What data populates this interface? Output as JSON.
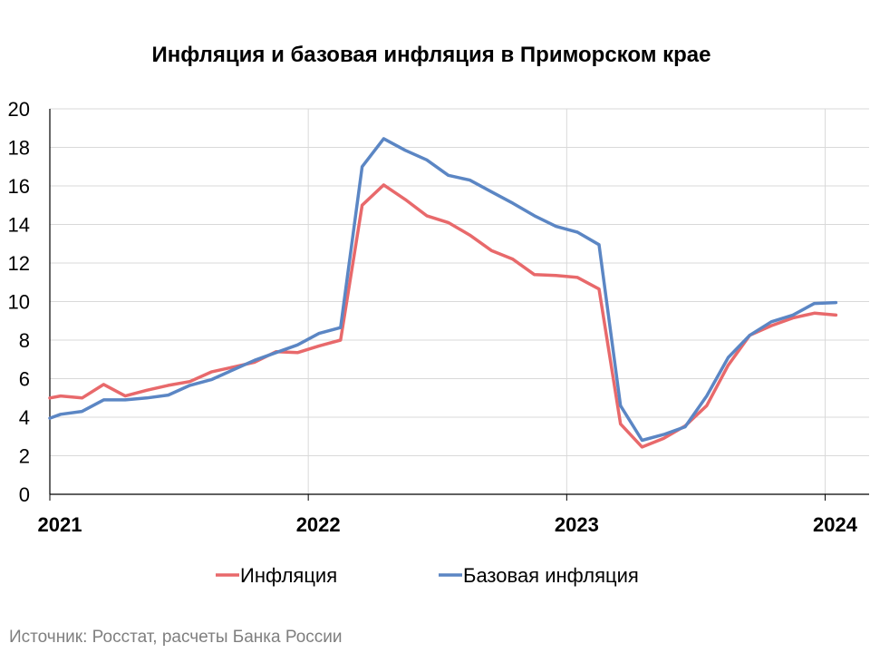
{
  "chart_data": {
    "type": "line",
    "title": "Инфляция и базовая инфляция в Приморском крае",
    "ylim": [
      0,
      20
    ],
    "yticks": [
      "0",
      "2",
      "4",
      "6",
      "8",
      "10",
      "12",
      "14",
      "16",
      "18",
      "20"
    ],
    "xlim": [
      2021,
      2024.17
    ],
    "xticks": [
      {
        "value": 2021,
        "label": "2021"
      },
      {
        "value": 2022,
        "label": "2022"
      },
      {
        "value": 2023,
        "label": "2023"
      },
      {
        "value": 2024,
        "label": "2024"
      }
    ],
    "grid": true,
    "legend_position": "bottom",
    "series": [
      {
        "name": "Инфляция",
        "color": "#e8696b",
        "x": [
          2021.0,
          2021.0417,
          2021.125,
          2021.2083,
          2021.2917,
          2021.375,
          2021.4583,
          2021.5417,
          2021.625,
          2021.7083,
          2021.7917,
          2021.875,
          2021.9583,
          2022.0417,
          2022.125,
          2022.2083,
          2022.2917,
          2022.375,
          2022.4583,
          2022.5417,
          2022.625,
          2022.7083,
          2022.7917,
          2022.875,
          2022.9583,
          2023.0417,
          2023.125,
          2023.2083,
          2023.2917,
          2023.375,
          2023.4583,
          2023.5417,
          2023.625,
          2023.7083,
          2023.7917,
          2023.875,
          2023.9583,
          2024.0417
        ],
        "values": [
          5.0,
          5.1,
          5.0,
          5.7,
          5.1,
          5.4,
          5.65,
          5.85,
          6.35,
          6.6,
          6.85,
          7.4,
          7.35,
          7.7,
          8.0,
          15.0,
          16.05,
          15.3,
          14.45,
          14.1,
          13.45,
          12.65,
          12.2,
          11.4,
          11.35,
          11.25,
          10.65,
          3.65,
          2.45,
          2.9,
          3.55,
          4.6,
          6.7,
          8.25,
          8.75,
          9.15,
          9.4,
          9.3
        ]
      },
      {
        "name": "Базовая инфляция",
        "color": "#5b86c4",
        "x": [
          2021.0,
          2021.0417,
          2021.125,
          2021.2083,
          2021.2917,
          2021.375,
          2021.4583,
          2021.5417,
          2021.625,
          2021.7083,
          2021.7917,
          2021.875,
          2021.9583,
          2022.0417,
          2022.125,
          2022.2083,
          2022.2917,
          2022.375,
          2022.4583,
          2022.5417,
          2022.625,
          2022.7083,
          2022.7917,
          2022.875,
          2022.9583,
          2023.0417,
          2023.125,
          2023.2083,
          2023.2917,
          2023.375,
          2023.4583,
          2023.5417,
          2023.625,
          2023.7083,
          2023.7917,
          2023.875,
          2023.9583,
          2024.0417
        ],
        "values": [
          3.95,
          4.15,
          4.3,
          4.9,
          4.9,
          5.0,
          5.15,
          5.65,
          5.95,
          6.45,
          6.95,
          7.35,
          7.75,
          8.35,
          8.65,
          17.0,
          18.45,
          17.85,
          17.35,
          16.55,
          16.3,
          15.7,
          15.1,
          14.45,
          13.9,
          13.6,
          12.95,
          4.6,
          2.8,
          3.1,
          3.5,
          5.1,
          7.1,
          8.25,
          8.95,
          9.3,
          9.9,
          9.95
        ]
      }
    ]
  },
  "source": "Источник: Росстат, расчеты Банка России"
}
